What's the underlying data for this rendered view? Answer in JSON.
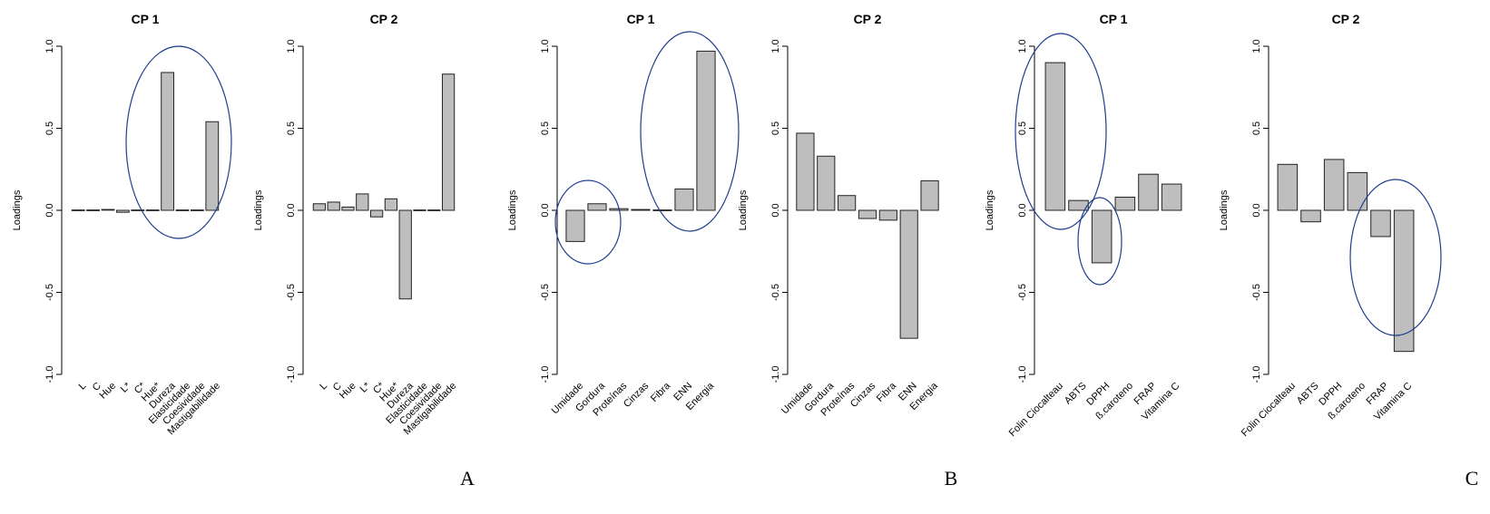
{
  "chart_data": [
    {
      "type": "bar",
      "group": "A",
      "title": "CP 1",
      "ylabel": "Loadings",
      "ylim": [
        -1.0,
        1.0
      ],
      "yticks": [
        "-1.0",
        "-0.5",
        "0.0",
        "0.5",
        "1.0"
      ],
      "categories": [
        "L",
        "C",
        "Hue",
        "L*",
        "C*",
        "Hue*",
        "Dureza",
        "Elasticidade",
        "Coesividade",
        "Mastigabilidade"
      ],
      "values": [
        0.0,
        0.0,
        0.003,
        -0.012,
        -0.004,
        -0.004,
        0.84,
        0.0,
        0.0,
        0.54
      ]
    },
    {
      "type": "bar",
      "group": "A",
      "title": "CP 2",
      "ylabel": "Loadings",
      "ylim": [
        -1.0,
        1.0
      ],
      "yticks": [
        "-1.0",
        "-0.5",
        "0.0",
        "0.5",
        "1.0"
      ],
      "categories": [
        "L",
        "C",
        "Hue",
        "L*",
        "C*",
        "Hue*",
        "Dureza",
        "Elasticidade",
        "Coesividade",
        "Mastigabilidade"
      ],
      "values": [
        0.04,
        0.05,
        0.02,
        0.1,
        -0.04,
        0.07,
        -0.54,
        0.0,
        0.0,
        0.83
      ]
    },
    {
      "type": "bar",
      "group": "B",
      "title": "CP 1",
      "ylabel": "Loadings",
      "ylim": [
        -1.0,
        1.0
      ],
      "yticks": [
        "-1.0",
        "-0.5",
        "0.0",
        "0.5",
        "1.0"
      ],
      "categories": [
        "Umidade",
        "Gordura",
        "Proteínas",
        "Cinzas",
        "Fibra",
        "ENN",
        "Energia"
      ],
      "values": [
        -0.19,
        0.04,
        0.01,
        0.005,
        0.0,
        0.13,
        0.97
      ]
    },
    {
      "type": "bar",
      "group": "B",
      "title": "CP 2",
      "ylabel": "Loadings",
      "ylim": [
        -1.0,
        1.0
      ],
      "yticks": [
        "-1.0",
        "-0.5",
        "0.0",
        "0.5",
        "1.0"
      ],
      "categories": [
        "Umidade",
        "Gordura",
        "Proteínas",
        "Cinzas",
        "Fibra",
        "ENN",
        "Energia"
      ],
      "values": [
        0.47,
        0.33,
        0.09,
        -0.05,
        -0.06,
        -0.78,
        0.18
      ]
    },
    {
      "type": "bar",
      "group": "C",
      "title": "CP 1",
      "ylabel": "Loadings",
      "ylim": [
        -1.0,
        1.0
      ],
      "yticks": [
        "-1.0",
        "-0.5",
        "0.0",
        "0.5",
        "1.0"
      ],
      "categories": [
        "Folin Ciocalteau",
        "ABTS",
        "DPPH",
        "ß.caroteno",
        "FRAP",
        "Vitamina C"
      ],
      "values": [
        0.9,
        0.06,
        -0.32,
        0.08,
        0.22,
        0.16
      ]
    },
    {
      "type": "bar",
      "group": "C",
      "title": "CP 2",
      "ylabel": "Loadings",
      "ylim": [
        -1.0,
        1.0
      ],
      "yticks": [
        "-1.0",
        "-0.5",
        "0.0",
        "0.5",
        "1.0"
      ],
      "categories": [
        "Folin Ciocalteau",
        "ABTS",
        "DPPH",
        "ß.caroteno",
        "FRAP",
        "Vitamina C"
      ],
      "values": [
        0.28,
        -0.07,
        0.31,
        0.23,
        -0.16,
        -0.86
      ]
    }
  ],
  "group_labels": [
    "A",
    "B",
    "C"
  ],
  "colors": {
    "bar_fill": "#bebebe",
    "bar_stroke": "#222222",
    "ellipse": "#1f3f8f"
  }
}
